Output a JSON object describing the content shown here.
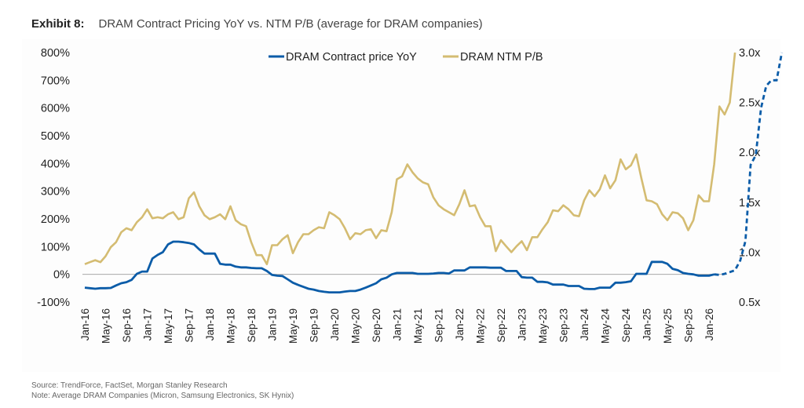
{
  "header": {
    "exhibit": "Exhibit 8:",
    "title": "DRAM Contract Pricing YoY vs. NTM P/B (average for DRAM companies)"
  },
  "footer": {
    "source": "Source: TrendForce, FactSet, Morgan Stanley Research",
    "note": "Note: Average DRAM Companies (Micron, Samsung Electronics, SK Hynix)"
  },
  "colors": {
    "contract": "#0b5ca8",
    "pb": "#d4bc72",
    "zero": "#aaaaaa"
  },
  "chart_data": {
    "type": "line",
    "title": "DRAM Contract Pricing YoY vs. NTM P/B (average for DRAM companies)",
    "x_start": "Jan-16",
    "x_step": "1 month",
    "x_tick_labels": [
      "Jan-16",
      "May-16",
      "Sep-16",
      "Jan-17",
      "May-17",
      "Sep-17",
      "Jan-18",
      "May-18",
      "Sep-18",
      "Jan-19",
      "May-19",
      "Sep-19",
      "Jan-20",
      "May-20",
      "Sep-20",
      "Jan-21",
      "May-21",
      "Sep-21",
      "Jan-22",
      "May-22",
      "Sep-22",
      "Jan-23",
      "May-23",
      "Sep-23",
      "Jan-24",
      "May-24",
      "Sep-24",
      "Jan-25",
      "May-25",
      "Sep-25",
      "Jan-26"
    ],
    "y_left": {
      "ticks": [
        "-100%",
        "0%",
        "100%",
        "200%",
        "300%",
        "400%",
        "500%",
        "600%",
        "700%",
        "800%"
      ],
      "range": [
        -100,
        800
      ]
    },
    "y_right": {
      "ticks": [
        "0.5x",
        "1.0x",
        "1.5x",
        "2.0x",
        "2.5x",
        "3.0x"
      ],
      "range": [
        0.5,
        3.0
      ]
    },
    "legend": [
      "DRAM Contract price YoY",
      "DRAM NTM P/B"
    ],
    "legend_position": "top-center",
    "series": [
      {
        "name": "DRAM Contract price YoY",
        "axis": "left",
        "unit": "%",
        "values": [
          -48,
          -50,
          -52,
          -50,
          -50,
          -49,
          -40,
          -32,
          -28,
          -20,
          2,
          10,
          10,
          57,
          70,
          80,
          108,
          118,
          118,
          116,
          113,
          108,
          90,
          75,
          75,
          75,
          38,
          35,
          35,
          28,
          25,
          25,
          23,
          22,
          22,
          12,
          -2,
          -5,
          -6,
          -18,
          -30,
          -38,
          -45,
          -52,
          -55,
          -60,
          -63,
          -65,
          -65,
          -65,
          -62,
          -60,
          -60,
          -55,
          -48,
          -40,
          -32,
          -18,
          -12,
          0,
          5,
          5,
          5,
          5,
          2,
          2,
          2,
          3,
          5,
          5,
          3,
          14,
          14,
          14,
          25,
          25,
          25,
          25,
          24,
          24,
          24,
          12,
          12,
          12,
          -10,
          -12,
          -12,
          -27,
          -27,
          -29,
          -37,
          -37,
          -37,
          -42,
          -42,
          -42,
          -52,
          -53,
          -53,
          -48,
          -48,
          -48,
          -30,
          -30,
          -28,
          -25,
          2,
          2,
          2,
          45,
          45,
          45,
          38,
          20,
          15,
          5,
          2,
          0,
          -5,
          -5,
          -5,
          0,
          -2,
          2,
          8,
          15,
          50,
          120,
          395,
          430,
          600,
          680,
          700,
          700,
          800
        ],
        "projected_from_index": 121
      },
      {
        "name": "DRAM NTM P/B",
        "axis": "right",
        "unit": "x",
        "values": [
          0.88,
          0.9,
          0.92,
          0.9,
          0.96,
          1.05,
          1.1,
          1.2,
          1.24,
          1.22,
          1.3,
          1.35,
          1.43,
          1.34,
          1.35,
          1.34,
          1.38,
          1.4,
          1.33,
          1.35,
          1.54,
          1.6,
          1.46,
          1.37,
          1.33,
          1.35,
          1.38,
          1.33,
          1.46,
          1.32,
          1.28,
          1.26,
          1.1,
          0.97,
          0.97,
          0.88,
          1.07,
          1.07,
          1.13,
          1.17,
          0.99,
          1.1,
          1.18,
          1.18,
          1.22,
          1.25,
          1.24,
          1.4,
          1.37,
          1.33,
          1.24,
          1.13,
          1.19,
          1.18,
          1.22,
          1.23,
          1.14,
          1.22,
          1.21,
          1.4,
          1.73,
          1.76,
          1.88,
          1.8,
          1.74,
          1.7,
          1.68,
          1.55,
          1.47,
          1.43,
          1.4,
          1.37,
          1.48,
          1.62,
          1.46,
          1.47,
          1.35,
          1.26,
          1.26,
          1.01,
          1.12,
          1.06,
          1.0,
          1.06,
          1.11,
          1.02,
          1.15,
          1.15,
          1.23,
          1.3,
          1.42,
          1.41,
          1.47,
          1.43,
          1.37,
          1.36,
          1.52,
          1.62,
          1.56,
          1.63,
          1.77,
          1.64,
          1.72,
          1.93,
          1.83,
          1.87,
          1.98,
          1.74,
          1.52,
          1.51,
          1.48,
          1.38,
          1.32,
          1.4,
          1.39,
          1.34,
          1.22,
          1.32,
          1.57,
          1.51,
          1.51,
          1.88,
          2.46,
          2.38,
          2.5,
          3.0
        ]
      }
    ]
  }
}
